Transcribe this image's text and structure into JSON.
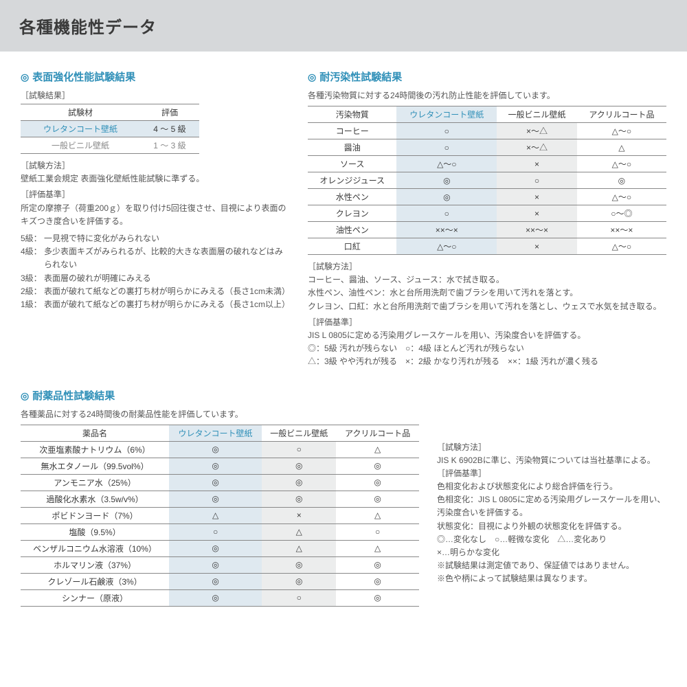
{
  "header": {
    "title": "各種機能性データ"
  },
  "colors": {
    "accent": "#3090b8",
    "hlbg": "#dfe9f0",
    "stripe": "#eceded",
    "headerbg": "#d6d8da"
  },
  "sec1": {
    "title": "表面強化性能試験結果",
    "subhead": "［試験結果］",
    "cols": [
      "試験材",
      "評価"
    ],
    "rows": [
      {
        "c": [
          "ウレタンコート壁紙",
          "4 ～ 5 級"
        ],
        "hl": true
      },
      {
        "c": [
          "一般ビニル壁紙",
          "1 ～ 3 級"
        ],
        "dim": true
      }
    ],
    "method_h": "［試験方法］",
    "method": "壁紙工業会規定 表面強化壁紙性能試験に準ずる。",
    "crit_h": "［評価基準］",
    "crit": "所定の摩擦子（荷重200ｇ）を取り付け5回往復させ、目視により表面のキズつき度合いを評価する。",
    "ratings": [
      {
        "lv": "5級：",
        "t": "一見視で特に変化がみられない"
      },
      {
        "lv": "4級：",
        "t": "多少表面キズがみられるが、比較的大きな表面層の破れなどはみられない"
      },
      {
        "lv": "3級：",
        "t": "表面層の破れが明確にみえる"
      },
      {
        "lv": "2級：",
        "t": "表面が破れて紙などの裏打ち材が明らかにみえる（長さ1cm未満）"
      },
      {
        "lv": "1級：",
        "t": "表面が破れて紙などの裏打ち材が明らかにみえる（長さ1cm以上）"
      }
    ]
  },
  "sec2": {
    "title": "耐汚染性試験結果",
    "intro": "各種汚染物質に対する24時間後の汚れ防止性能を評価しています。",
    "cols": [
      "汚染物質",
      "ウレタンコート壁紙",
      "一般ビニル壁紙",
      "アクリルコート品"
    ],
    "rows": [
      [
        "コーヒー",
        "○",
        "×～△",
        "△～○"
      ],
      [
        "醤油",
        "○",
        "×～△",
        "△"
      ],
      [
        "ソース",
        "△～○",
        "×",
        "△～○"
      ],
      [
        "オレンジジュース",
        "◎",
        "○",
        "◎"
      ],
      [
        "水性ペン",
        "◎",
        "×",
        "△～○"
      ],
      [
        "クレヨン",
        "○",
        "×",
        "○～◎"
      ],
      [
        "油性ペン",
        "××～×",
        "××～×",
        "××～×"
      ],
      [
        "口紅",
        "△～○",
        "×",
        "△～○"
      ]
    ],
    "method_h": "［試験方法］",
    "method": [
      "コーヒー、醤油、ソース、ジュース：水で拭き取る。",
      "水性ペン、油性ペン：水と台所用洗剤で歯ブラシを用いて汚れを落とす。",
      "クレヨン、口紅：水と台所用洗剤で歯ブラシを用いて汚れを落とし、ウェスで水気を拭き取る。"
    ],
    "crit_h": "［評価基準］",
    "crit": [
      "JIS L 0805に定める汚染用グレースケールを用い、汚染度合いを評価する。",
      "◎：5級 汚れが残らない　○：4級 ほとんど汚れが残らない",
      "△：3級 やや汚れが残る　×：2級 かなり汚れが残る　××：1級 汚れが濃く残る"
    ]
  },
  "sec3": {
    "title": "耐薬品性試験結果",
    "intro": "各種薬品に対する24時間後の耐薬品性能を評価しています。",
    "cols": [
      "薬品名",
      "ウレタンコート壁紙",
      "一般ビニル壁紙",
      "アクリルコート品"
    ],
    "rows": [
      [
        "次亜塩素酸ナトリウム（6%）",
        "◎",
        "○",
        "△"
      ],
      [
        "無水エタノール（99.5vol%）",
        "◎",
        "◎",
        "◎"
      ],
      [
        "アンモニア水（25%）",
        "◎",
        "◎",
        "◎"
      ],
      [
        "過酸化水素水（3.5w/v%）",
        "◎",
        "◎",
        "◎"
      ],
      [
        "ポビドンヨード（7%）",
        "△",
        "×",
        "△"
      ],
      [
        "塩酸（9.5%）",
        "○",
        "△",
        "○"
      ],
      [
        "ベンザルコニウム水溶液（10%）",
        "◎",
        "△",
        "△"
      ],
      [
        "ホルマリン液（37%）",
        "◎",
        "◎",
        "◎"
      ],
      [
        "クレゾール石鹸液（3%）",
        "◎",
        "◎",
        "◎"
      ],
      [
        "シンナー（原液）",
        "◎",
        "○",
        "◎"
      ]
    ],
    "method_h": "［試験方法］",
    "method": "JIS K 6902Bに準じ、汚染物質については当社基準による。",
    "crit_h": "［評価基準］",
    "crit": [
      "色相変化および状態変化により総合評価を行う。",
      "色相変化：JIS L 0805に定める汚染用グレースケールを用い、汚染度合いを評価する。",
      "状態変化：目視により外観の状態変化を評価する。",
      "◎…変化なし　○…軽微な変化　△…変化あり",
      "×…明らかな変化",
      "※試験結果は測定値であり、保証値ではありません。",
      "※色や柄によって試験結果は異なります。"
    ]
  }
}
